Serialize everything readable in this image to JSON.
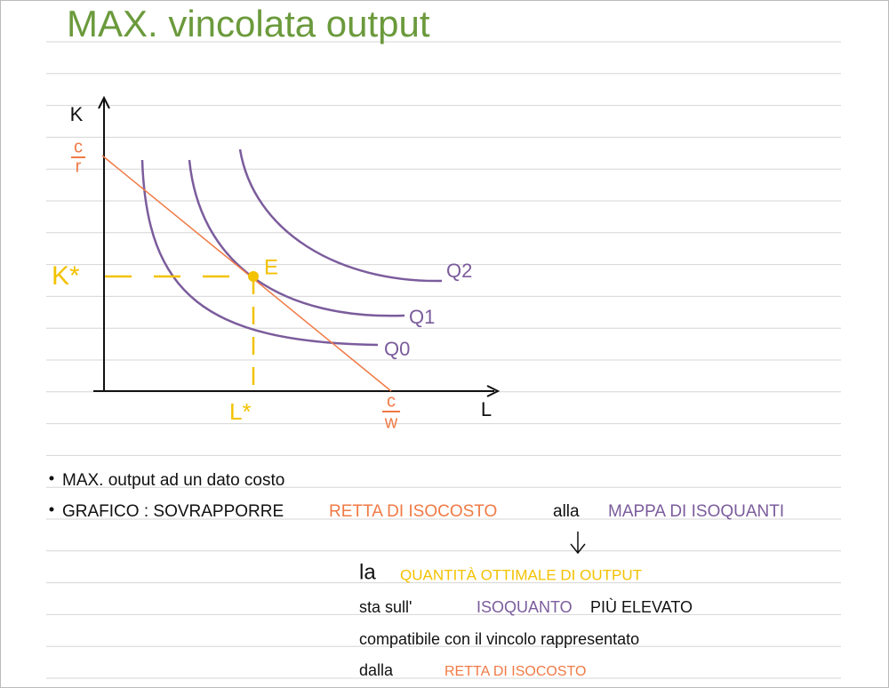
{
  "header": {
    "title": "MAX. vincolata output"
  },
  "diagram": {
    "y_axis_label": "K",
    "x_axis_label": "L",
    "k_intercept": {
      "numerator": "c",
      "denominator": "r"
    },
    "l_intercept": {
      "numerator": "c",
      "denominator": "w"
    },
    "k_star": "K*",
    "l_star": "L*",
    "point": "E",
    "isoquants": [
      "Q2",
      "Q1",
      "Q0"
    ]
  },
  "bullets": [
    {
      "text": "MAX. output ad un dato costo"
    },
    {
      "parts": [
        "GRAFICO : SOVRAPPORRE",
        "RETTA DI ISOCOSTO",
        "alla",
        "MAPPA DI ISOQUANTI"
      ]
    }
  ],
  "conclusion": {
    "lines": [
      [
        "la",
        "QUANTITÀ OTTIMALE DI OUTPUT"
      ],
      [
        "sta sull'",
        "ISOQUANTO",
        "PIÙ ELEVATO"
      ],
      [
        "compatibile con il vincolo rappresentato"
      ],
      [
        "dalla",
        "RETTA DI ISOCOSTO"
      ]
    ]
  }
}
